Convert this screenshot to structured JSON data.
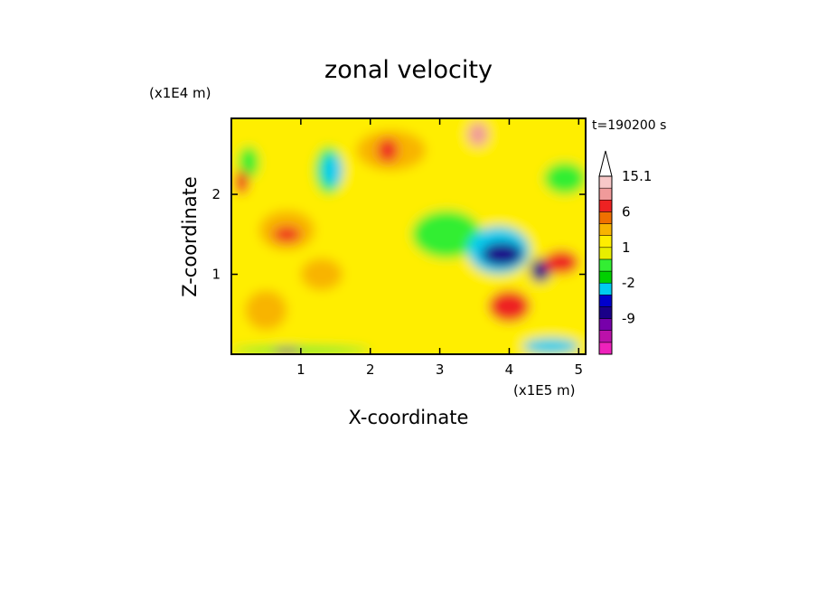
{
  "chart_data": {
    "type": "heatmap",
    "title": "zonal velocity",
    "xlabel": "X-coordinate",
    "ylabel": "Z-coordinate",
    "x_unit": "(x1E5 m)",
    "y_unit": "(x1E4 m)",
    "time_label": "t=190200 s",
    "xlim": [
      0,
      5.1
    ],
    "ylim": [
      0,
      2.95
    ],
    "x_ticks": [
      1,
      2,
      3,
      4,
      5
    ],
    "y_ticks": [
      1,
      2
    ],
    "colorbar": {
      "labels": [
        "15.1",
        "6",
        "1",
        "-2",
        "-9"
      ],
      "label_values": [
        15.1,
        6,
        1,
        -2,
        -9
      ],
      "levels": [
        -16,
        -12,
        -9,
        -6,
        -4,
        -2,
        -1,
        0,
        1,
        2,
        4,
        6,
        9,
        12,
        15.1
      ],
      "colors": [
        "#ee22bb",
        "#bb11aa",
        "#7700aa",
        "#1a0088",
        "#0000cc",
        "#00ccee",
        "#00d000",
        "#33ee33",
        "#e8ee00",
        "#ffee00",
        "#f8b400",
        "#f07000",
        "#ee2222",
        "#f09a9a",
        "#f8c8c8"
      ],
      "extend_max": true
    },
    "field_regions": [
      {
        "x": [
          0,
          5.1
        ],
        "y": [
          0,
          2.95
        ],
        "value": 1.5
      },
      {
        "x": [
          0.1,
          0.4
        ],
        "y": [
          2.2,
          2.6
        ],
        "value": -0.5
      },
      {
        "x": [
          0.4,
          1.2
        ],
        "y": [
          1.3,
          1.8
        ],
        "value": 4
      },
      {
        "x": [
          0.6,
          1.0
        ],
        "y": [
          1.4,
          1.6
        ],
        "value": 7
      },
      {
        "x": [
          0.2,
          0.8
        ],
        "y": [
          0.3,
          0.8
        ],
        "value": 4
      },
      {
        "x": [
          1.0,
          1.6
        ],
        "y": [
          0.8,
          1.2
        ],
        "value": 4
      },
      {
        "x": [
          1.2,
          1.6
        ],
        "y": [
          2.0,
          2.6
        ],
        "value": -0.5
      },
      {
        "x": [
          1.3,
          1.6
        ],
        "y": [
          2.1,
          2.5
        ],
        "value": -3
      },
      {
        "x": [
          1.8,
          2.8
        ],
        "y": [
          2.3,
          2.8
        ],
        "value": 4
      },
      {
        "x": [
          2.1,
          2.4
        ],
        "y": [
          2.4,
          2.7
        ],
        "value": 7
      },
      {
        "x": [
          2.6,
          3.6
        ],
        "y": [
          1.2,
          1.8
        ],
        "value": -0.5
      },
      {
        "x": [
          3.4,
          4.3
        ],
        "y": [
          1.0,
          1.6
        ],
        "value": -3
      },
      {
        "x": [
          3.6,
          4.2
        ],
        "y": [
          1.1,
          1.4
        ],
        "value": -7
      },
      {
        "x": [
          4.3,
          4.6
        ],
        "y": [
          0.9,
          1.2
        ],
        "value": -7
      },
      {
        "x": [
          4.5,
          5.0
        ],
        "y": [
          1.0,
          1.3
        ],
        "value": 7
      },
      {
        "x": [
          3.7,
          4.3
        ],
        "y": [
          0.4,
          0.8
        ],
        "value": 7
      },
      {
        "x": [
          3.4,
          3.7
        ],
        "y": [
          2.6,
          2.9
        ],
        "value": 10
      },
      {
        "x": [
          0.0,
          2.0
        ],
        "y": [
          0.0,
          0.1
        ],
        "value": -0.5
      },
      {
        "x": [
          0.6,
          1.0
        ],
        "y": [
          0.0,
          0.07
        ],
        "value": -7
      },
      {
        "x": [
          4.2,
          5.0
        ],
        "y": [
          0.0,
          0.2
        ],
        "value": -3
      },
      {
        "x": [
          4.5,
          5.1
        ],
        "y": [
          2.0,
          2.4
        ],
        "value": -0.5
      },
      {
        "x": [
          0.05,
          0.25
        ],
        "y": [
          2.0,
          2.3
        ],
        "value": 7
      }
    ]
  }
}
